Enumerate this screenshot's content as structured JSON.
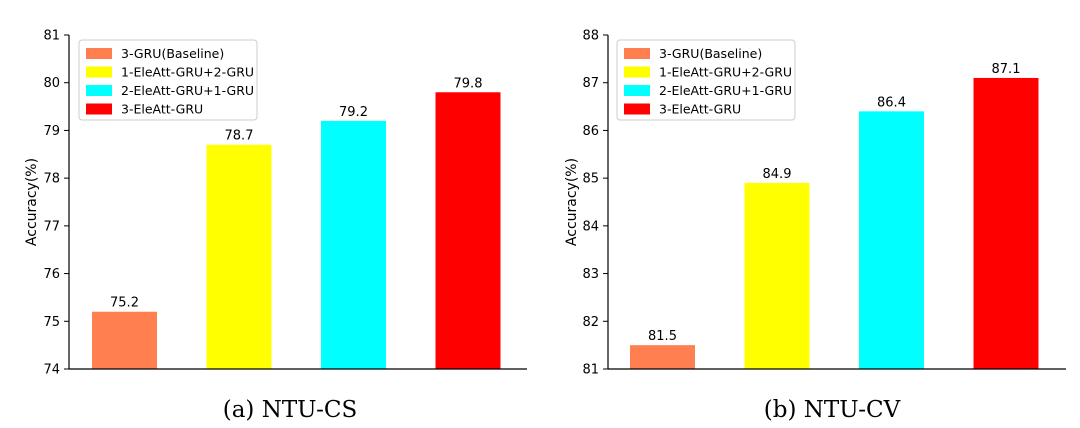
{
  "chart_data": [
    {
      "type": "bar",
      "caption": "(a) NTU-CS",
      "ylabel": "Accuracy(%)",
      "xlabel": "",
      "ylim": [
        74,
        81
      ],
      "yticks": [
        74,
        75,
        76,
        77,
        78,
        79,
        80,
        81
      ],
      "categories": [
        "3-GRU(Baseline)",
        "1-EleAtt-GRU+2-GRU",
        "2-EleAtt-GRU+1-GRU",
        "3-EleAtt-GRU"
      ],
      "values": [
        75.2,
        78.7,
        79.2,
        79.8
      ],
      "colors": [
        "#ff7f50",
        "#ffff00",
        "#00ffff",
        "#ff0000"
      ],
      "data_labels": [
        "75.2",
        "78.7",
        "79.2",
        "79.8"
      ],
      "legend": {
        "placement": "top-left",
        "entries": [
          "3-GRU(Baseline)",
          "1-EleAtt-GRU+2-GRU",
          "2-EleAtt-GRU+1-GRU",
          "3-EleAtt-GRU"
        ]
      },
      "grid": false
    },
    {
      "type": "bar",
      "caption": "(b) NTU-CV",
      "ylabel": "Accuracy(%)",
      "xlabel": "",
      "ylim": [
        81,
        88
      ],
      "yticks": [
        81,
        82,
        83,
        84,
        85,
        86,
        87,
        88
      ],
      "categories": [
        "3-GRU(Baseline)",
        "1-EleAtt-GRU+2-GRU",
        "2-EleAtt-GRU+1-GRU",
        "3-EleAtt-GRU"
      ],
      "values": [
        81.5,
        84.9,
        86.4,
        87.1
      ],
      "colors": [
        "#ff7f50",
        "#ffff00",
        "#00ffff",
        "#ff0000"
      ],
      "data_labels": [
        "81.5",
        "84.9",
        "86.4",
        "87.1"
      ],
      "legend": {
        "placement": "top-left",
        "entries": [
          "3-GRU(Baseline)",
          "1-EleAtt-GRU+2-GRU",
          "2-EleAtt-GRU+1-GRU",
          "3-EleAtt-GRU"
        ]
      },
      "grid": false
    }
  ]
}
